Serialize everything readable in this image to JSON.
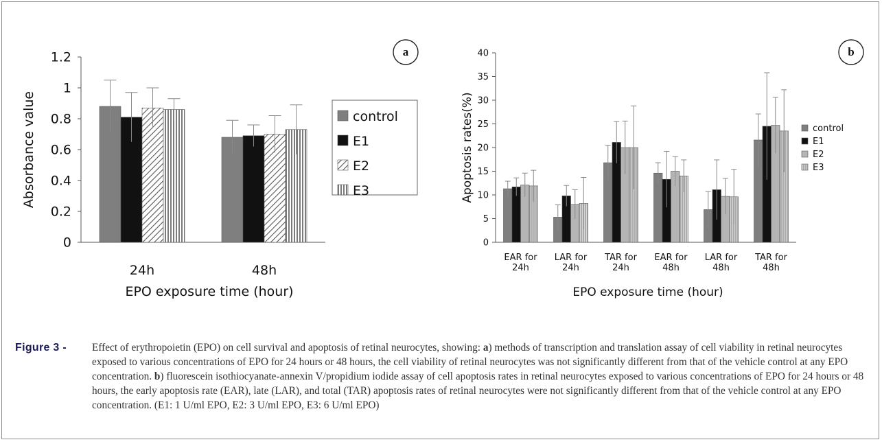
{
  "chart_data": [
    {
      "type": "bar",
      "panel": "a",
      "categories": [
        "24h",
        "48h"
      ],
      "series": [
        {
          "name": "control",
          "values": [
            0.88,
            0.68
          ],
          "errors": [
            0.17,
            0.11
          ]
        },
        {
          "name": "E1",
          "values": [
            0.81,
            0.69
          ],
          "errors": [
            0.16,
            0.07
          ]
        },
        {
          "name": "E2",
          "values": [
            0.87,
            0.7
          ],
          "errors": [
            0.13,
            0.12
          ]
        },
        {
          "name": "E3",
          "values": [
            0.86,
            0.73
          ],
          "errors": [
            0.07,
            0.16
          ]
        }
      ],
      "xlabel": "EPO exposure time (hour)",
      "ylabel": "Absorbance value",
      "ylim": [
        0,
        1.2
      ],
      "yticks": [
        "0",
        "0.2",
        "0.4",
        "0.6",
        "0.8",
        "1",
        "1.2"
      ],
      "legend": "right",
      "grid": false
    },
    {
      "type": "bar",
      "panel": "b",
      "categories": [
        [
          "EAR for",
          "24h"
        ],
        [
          "LAR for",
          "24h"
        ],
        [
          "TAR for",
          "24h"
        ],
        [
          "EAR for",
          "48h"
        ],
        [
          "LAR for",
          "48h"
        ],
        [
          "TAR for",
          "48h"
        ]
      ],
      "series": [
        {
          "name": "control",
          "values": [
            11.3,
            5.3,
            16.8,
            14.6,
            6.9,
            21.6
          ],
          "errors": [
            1.6,
            2.6,
            3.7,
            2.2,
            3.8,
            5.5
          ]
        },
        {
          "name": "E1",
          "values": [
            11.7,
            9.8,
            21.1,
            13.3,
            11.1,
            24.5
          ],
          "errors": [
            1.9,
            2.2,
            4.4,
            5.9,
            6.3,
            11.3
          ]
        },
        {
          "name": "E2",
          "values": [
            12.1,
            8.0,
            20.0,
            15.0,
            9.7,
            24.7
          ],
          "errors": [
            2.5,
            3.1,
            5.6,
            3.1,
            3.8,
            5.9
          ]
        },
        {
          "name": "E3",
          "values": [
            11.9,
            8.2,
            20.0,
            14.0,
            9.6,
            23.5
          ],
          "errors": [
            3.3,
            5.5,
            8.8,
            3.4,
            5.8,
            8.7
          ]
        }
      ],
      "xlabel": "EPO exposure time (hour)",
      "ylabel": "Apoptosis rates(%)",
      "ylim": [
        0,
        40
      ],
      "yticks": [
        "0",
        "5",
        "10",
        "15",
        "20",
        "25",
        "30",
        "35",
        "40"
      ],
      "legend": "right",
      "grid": false
    }
  ],
  "colors": {
    "control": "#7f7f7f",
    "E1": "#111111",
    "E2": "#b5b5b5",
    "E3": "#a8a8a8"
  },
  "caption": {
    "label": "Figure 3 -",
    "text_1": "Effect of erythropoietin (EPO) on cell survival and apoptosis of retinal neurocytes, showing: ",
    "a": "a",
    "text_2": ") methods of transcription and translation assay of cell viability in retinal neurocytes exposed to various concentrations of EPO for 24 hours or 48 hours, the cell viability of retinal neurocytes was not significantly different from that of the vehicle control at any EPO concentration. ",
    "b": "b",
    "text_3": ") fluorescein isothiocyanate-annexin V/propidium iodide assay of cell apoptosis rates in retinal neurocytes exposed to various concentrations of EPO for 24 hours or 48 hours, the early apoptosis rate (EAR), late (LAR), and total (TAR) apoptosis rates of retinal neurocytes were not significantly different from that of the vehicle control at any EPO concentration. (E1: 1 U/ml EPO, E2: 3 U/ml EPO, E3: 6 U/ml EPO)"
  }
}
